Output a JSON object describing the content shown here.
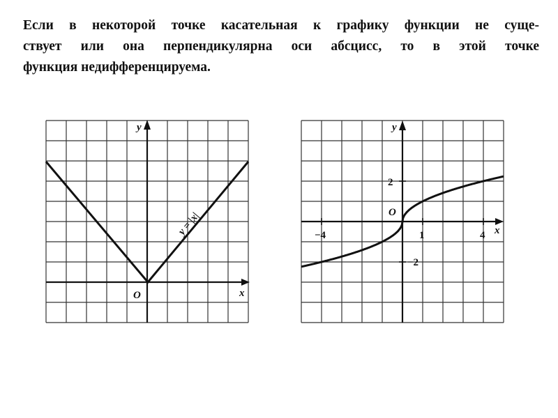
{
  "paragraph": {
    "lines": [
      "Если в некоторой точке касательная к графику функции не суще-",
      "ствует или она перпендикулярна оси абсцисс, то в этой точке",
      "функция недифференцируема."
    ]
  },
  "graph_left": {
    "x_label": "x",
    "y_label": "y",
    "origin_label": "O",
    "function_label": "y = |x|"
  },
  "graph_right": {
    "x_label": "x",
    "y_label": "y",
    "origin_label": "O",
    "x_ticks": [
      "−4",
      "1",
      "4"
    ],
    "y_ticks": [
      "2",
      "−2"
    ]
  }
}
